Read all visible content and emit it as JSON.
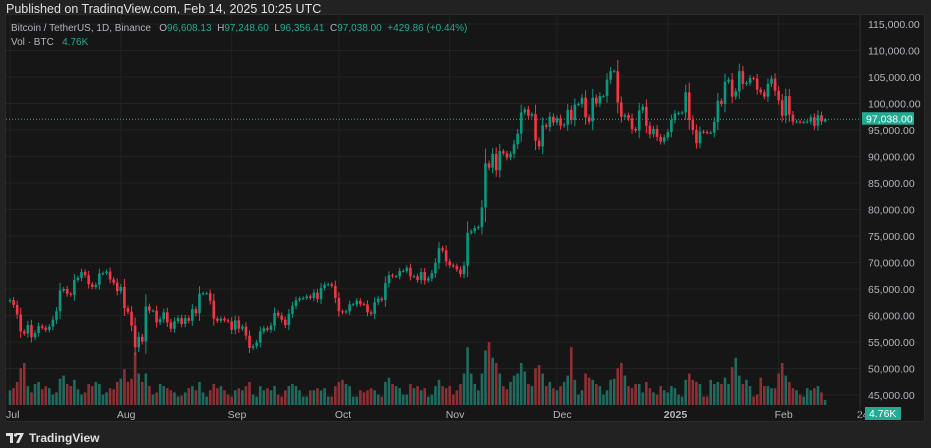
{
  "header": {
    "published": "Published on TradingView.com, Feb 14, 2025 10:25 UTC"
  },
  "legend": {
    "symbol": "Bitcoin / TetherUS, 1D, Binance",
    "o_label": "O",
    "o": "96,608.13",
    "h_label": "H",
    "h": "97,248.60",
    "l_label": "L",
    "l": "96,356.41",
    "c_label": "C",
    "c": "97,038.00",
    "change": "+429.86 (+0.44%)",
    "vol_label": "Vol · BTC",
    "vol": "4.76K"
  },
  "footer": {
    "brand": "TradingView"
  },
  "colors": {
    "up": "#089981",
    "down": "#f23645",
    "vol_up": "#1f6b60",
    "vol_down": "#8c3035",
    "bg": "#161616",
    "grid": "#232323",
    "last_price": "#22ab94"
  },
  "chart_data": {
    "type": "candlestick",
    "start_date": "2024-07-01",
    "interval": "1D",
    "x_tick_labels": [
      {
        "label": "Jul",
        "index": 0
      },
      {
        "label": "Aug",
        "index": 31
      },
      {
        "label": "Sep",
        "index": 62
      },
      {
        "label": "Oct",
        "index": 92
      },
      {
        "label": "Nov",
        "index": 123
      },
      {
        "label": "Dec",
        "index": 153
      },
      {
        "label": "2025",
        "index": 184
      },
      {
        "label": "Feb",
        "index": 215
      },
      {
        "label": "24",
        "index": 238
      }
    ],
    "y_ticks": [
      "45,000.00",
      "50,000.00",
      "55,000.00",
      "60,000.00",
      "65,000.00",
      "70,000.00",
      "75,000.00",
      "80,000.00",
      "85,000.00",
      "90,000.00",
      "95,000.00",
      "100,000.00",
      "105,000.00",
      "110,000.00",
      "115,000.00"
    ],
    "ylim": [
      45000,
      115000
    ],
    "last_price_label": "97,038.00",
    "last_volume_label": "4.76K",
    "first_open": 62700,
    "last_candle": {
      "o": 96608.13,
      "h": 97248.6,
      "l": 96356.41,
      "c": 97038.0
    },
    "closes": [
      62900,
      62000,
      60200,
      57000,
      56600,
      58200,
      55900,
      56700,
      58000,
      57700,
      57300,
      57900,
      59200,
      60800,
      64700,
      65000,
      64100,
      63900,
      66700,
      67100,
      68200,
      67600,
      65900,
      65400,
      65800,
      67900,
      68000,
      68300,
      66800,
      66200,
      64600,
      65400,
      61400,
      60700,
      58100,
      54000,
      56000,
      55100,
      61700,
      60900,
      60900,
      58700,
      59300,
      60600,
      58700,
      57500,
      58900,
      59500,
      58400,
      59500,
      59000,
      61200,
      60400,
      64100,
      64200,
      64200,
      62800,
      59400,
      59000,
      59400,
      59100,
      58900,
      57300,
      59100,
      57500,
      57900,
      56200,
      53900,
      54200,
      54900,
      57000,
      57600,
      57300,
      58100,
      60500,
      60000,
      59200,
      58200,
      60300,
      61800,
      62900,
      63200,
      63300,
      63600,
      63300,
      64300,
      63100,
      65200,
      65800,
      65900,
      65600,
      63300,
      60800,
      60600,
      60800,
      62100,
      62100,
      62800,
      62200,
      62100,
      60600,
      60300,
      62500,
      63200,
      62900,
      66100,
      67600,
      67400,
      67400,
      68400,
      68400,
      69000,
      67400,
      67400,
      66700,
      68200,
      66600,
      67000,
      68000,
      69900,
      72700,
      72300,
      70200,
      69500,
      69300,
      68700,
      67800,
      69400,
      75600,
      75900,
      76500,
      76700,
      80400,
      88700,
      87900,
      90500,
      87400,
      91000,
      90600,
      89800,
      90500,
      92300,
      94300,
      98300,
      98900,
      97700,
      98000,
      93000,
      91900,
      95900,
      95600,
      97500,
      96400,
      97200,
      95800,
      96000,
      98800,
      96900,
      99800,
      99900,
      101100,
      97400,
      96600,
      101100,
      100000,
      101400,
      101400,
      104500,
      106100,
      106100,
      100200,
      97500,
      97800,
      97200,
      95200,
      94900,
      98700,
      99400,
      95800,
      94200,
      95200,
      93700,
      92800,
      93600,
      94600,
      96900,
      98100,
      98200,
      98300,
      102100,
      96900,
      95000,
      92500,
      94700,
      94600,
      94500,
      94500,
      96500,
      100500,
      99900,
      104100,
      104500,
      101300,
      102300,
      106100,
      103700,
      103900,
      104800,
      104700,
      102600,
      102100,
      101300,
      103700,
      104700,
      102400,
      100600,
      97700,
      101400,
      97900,
      96600,
      96600,
      96500,
      96500,
      96600,
      97400,
      95800,
      97800,
      96608,
      97038
    ],
    "volumes_k": [
      14,
      16,
      22,
      35,
      40,
      18,
      12,
      20,
      22,
      15,
      18,
      16,
      10,
      12,
      25,
      28,
      20,
      18,
      24,
      15,
      10,
      12,
      20,
      18,
      22,
      20,
      10,
      12,
      16,
      15,
      22,
      25,
      34,
      22,
      25,
      50,
      30,
      22,
      30,
      18,
      10,
      12,
      20,
      18,
      16,
      14,
      12,
      8,
      9,
      12,
      16,
      18,
      14,
      22,
      12,
      8,
      14,
      20,
      16,
      18,
      14,
      10,
      8,
      14,
      16,
      14,
      18,
      22,
      10,
      8,
      18,
      14,
      16,
      14,
      18,
      10,
      8,
      14,
      18,
      20,
      18,
      14,
      8,
      8,
      14,
      14,
      16,
      14,
      16,
      8,
      8,
      18,
      22,
      24,
      20,
      18,
      8,
      8,
      14,
      12,
      14,
      16,
      14,
      10,
      8,
      22,
      26,
      20,
      18,
      16,
      10,
      10,
      20,
      16,
      18,
      14,
      16,
      8,
      10,
      18,
      24,
      18,
      16,
      18,
      10,
      14,
      20,
      30,
      55,
      30,
      20,
      14,
      30,
      52,
      60,
      45,
      40,
      30,
      18,
      15,
      22,
      28,
      30,
      40,
      32,
      20,
      18,
      35,
      38,
      30,
      18,
      22,
      16,
      14,
      18,
      22,
      28,
      55,
      24,
      10,
      14,
      30,
      26,
      24,
      20,
      18,
      10,
      14,
      24,
      25,
      35,
      40,
      28,
      18,
      16,
      20,
      20,
      12,
      22,
      16,
      12,
      10,
      18,
      14,
      12,
      18,
      16,
      10,
      8,
      24,
      30,
      24,
      22,
      20,
      8,
      8,
      24,
      20,
      22,
      20,
      26,
      20,
      36,
      45,
      28,
      20,
      24,
      18,
      8,
      10,
      26,
      18,
      18,
      16,
      16,
      30,
      40,
      28,
      22,
      16,
      14,
      10,
      8,
      16,
      14,
      16,
      18,
      12,
      4.76
    ]
  }
}
